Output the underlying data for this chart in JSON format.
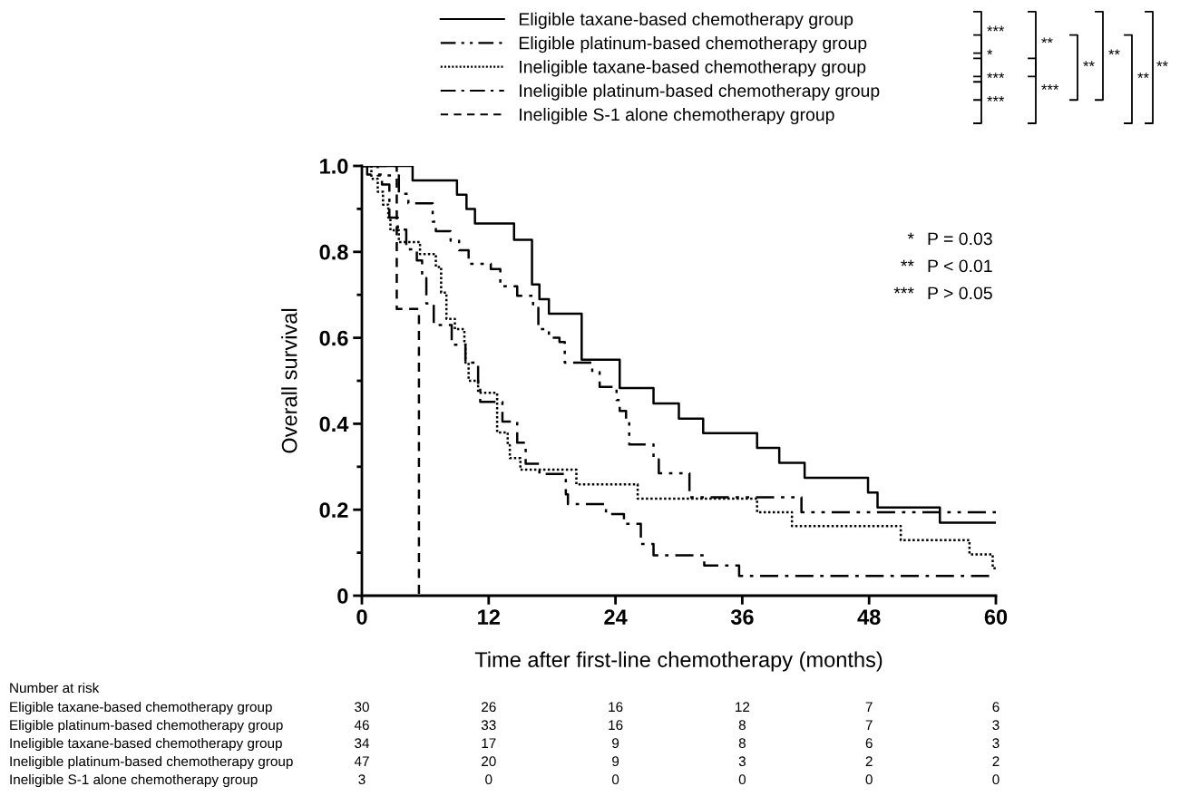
{
  "chart_data": {
    "type": "step",
    "xlabel": "Time after first-line chemotherapy (months)",
    "ylabel": "Overall survival",
    "xlim": [
      0,
      60
    ],
    "xticks": [
      0,
      12,
      24,
      36,
      48,
      60
    ],
    "ylim": [
      0,
      1.0
    ],
    "yticks": [
      0,
      {
        "value": 0.1,
        "label": null
      },
      0.2,
      {
        "value": 0.3,
        "label": null
      },
      0.4,
      {
        "value": 0.5,
        "label": null
      },
      0.6,
      {
        "value": 0.7,
        "label": null
      },
      0.8,
      {
        "value": 0.9,
        "label": null
      },
      {
        "value": 1.0,
        "label": "1.0"
      }
    ],
    "grid": false,
    "legend": "top",
    "series": [
      {
        "name": "Eligible taxane-based chemotherapy group",
        "color": "#000000",
        "line_style": "solid",
        "x": [
          0,
          4.8,
          9.0,
          9.9,
          10.7,
          14.4,
          16.1,
          16.8,
          17.7,
          20.8,
          24.4,
          27.6,
          30.0,
          32.3,
          37.4,
          39.5,
          41.9,
          47.9,
          48.8,
          54.7,
          60
        ],
        "values": [
          1.0,
          0.966,
          0.933,
          0.9,
          0.866,
          0.828,
          0.724,
          0.69,
          0.656,
          0.549,
          0.483,
          0.447,
          0.412,
          0.378,
          0.344,
          0.309,
          0.274,
          0.24,
          0.205,
          0.17,
          0.17
        ]
      },
      {
        "name": "Eligible platinum-based chemotherapy group",
        "color": "#000000",
        "line_style": "dashdotdot",
        "x": [
          0,
          1.5,
          3.5,
          4.4,
          6.7,
          7.0,
          8.4,
          9.2,
          10.1,
          12.2,
          13.1,
          14.7,
          16.2,
          16.7,
          17.7,
          18.7,
          19.2,
          21.8,
          22.5,
          24.1,
          24.4,
          25.0,
          25.3,
          27.6,
          28.1,
          31.0,
          41.6,
          60
        ],
        "values": [
          1.0,
          0.978,
          0.935,
          0.913,
          0.87,
          0.848,
          0.826,
          0.804,
          0.772,
          0.76,
          0.72,
          0.698,
          0.674,
          0.62,
          0.6,
          0.59,
          0.542,
          0.52,
          0.486,
          0.455,
          0.43,
          0.41,
          0.352,
          0.317,
          0.285,
          0.229,
          0.194,
          0.194
        ]
      },
      {
        "name": "Ineligible taxane-based chemotherapy group",
        "color": "#000000",
        "line_style": "dotted",
        "x": [
          0,
          0.9,
          1.5,
          2.0,
          2.5,
          2.7,
          3.5,
          5.5,
          7.0,
          7.5,
          8.0,
          8.8,
          9.7,
          9.8,
          10.1,
          11.0,
          12.8,
          13.8,
          14.0,
          15.0,
          20.3,
          26.1,
          37.4,
          40.7,
          51.0,
          57.5,
          59.7,
          60
        ],
        "values": [
          1.0,
          0.97,
          0.94,
          0.91,
          0.88,
          0.85,
          0.823,
          0.795,
          0.765,
          0.705,
          0.644,
          0.62,
          0.587,
          0.542,
          0.5,
          0.472,
          0.38,
          0.35,
          0.32,
          0.293,
          0.259,
          0.226,
          0.194,
          0.162,
          0.129,
          0.096,
          0.064,
          0.064
        ]
      },
      {
        "name": "Ineligible platinum-based chemotherapy group",
        "color": "#000000",
        "line_style": "dashdot",
        "x": [
          0,
          0.5,
          1.9,
          2.6,
          3.4,
          4.2,
          5.2,
          5.7,
          6.1,
          6.8,
          8.5,
          9.8,
          11.0,
          11.2,
          13.3,
          14.7,
          15.5,
          16.8,
          19.3,
          19.5,
          23.1,
          24.8,
          26.4,
          27.6,
          32.4,
          35.7,
          60
        ],
        "values": [
          1.0,
          0.98,
          0.957,
          0.88,
          0.852,
          0.806,
          0.78,
          0.739,
          0.68,
          0.63,
          0.584,
          0.542,
          0.486,
          0.451,
          0.405,
          0.356,
          0.307,
          0.283,
          0.236,
          0.213,
          0.19,
          0.167,
          0.12,
          0.094,
          0.07,
          0.046,
          0.046
        ]
      },
      {
        "name": "Ineligible S-1 alone chemotherapy group",
        "color": "#000000",
        "line_style": "dashed",
        "x": [
          0,
          3.3,
          5.4,
          5.4
        ],
        "values": [
          1.0,
          0.667,
          0.667,
          0
        ]
      }
    ],
    "annotations": [
      "***",
      "*",
      "***",
      "***",
      "**",
      "***",
      "**",
      "**",
      "**",
      "**",
      "*",
      "P = 0.03",
      "**",
      "P < 0.01",
      "***",
      "P > 0.05",
      "Number at risk",
      "Eligible taxane-based chemotherapy group",
      "30",
      "26",
      "16",
      "12",
      "7",
      "6",
      "Eligible platinum-based chemotherapy group",
      "46",
      "33",
      "16",
      "8",
      "7",
      "3",
      "Ineligible taxane-based chemotherapy group",
      "34",
      "17",
      "9",
      "8",
      "6",
      "3",
      "Ineligible platinum-based chemotherapy group",
      "47",
      "20",
      "9",
      "3",
      "2",
      "2",
      "Ineligible S-1 alone chemotherapy group",
      "3",
      "0",
      "0",
      "0",
      "0",
      "0"
    ]
  }
}
